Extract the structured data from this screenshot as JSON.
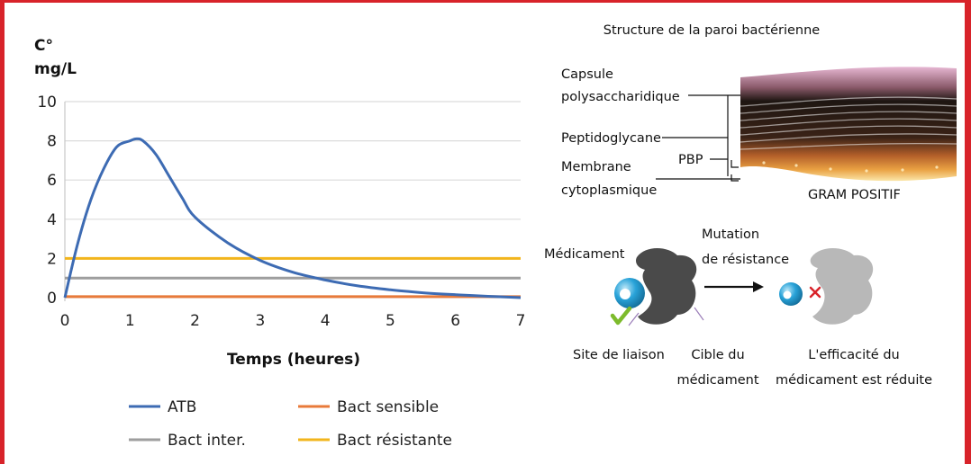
{
  "chart_data": {
    "type": "line",
    "title": "",
    "ylabel_line1": "C°",
    "ylabel_line2": "mg/L",
    "xlabel": "Temps (heures)",
    "xlim": [
      0,
      7
    ],
    "ylim": [
      0,
      10
    ],
    "xticks": [
      "0",
      "1",
      "2",
      "3",
      "4",
      "5",
      "6",
      "7"
    ],
    "yticks": [
      "0",
      "2",
      "4",
      "6",
      "8",
      "10"
    ],
    "grid": true,
    "legend_placement": "bottom",
    "series": [
      {
        "name": "ATB",
        "color": "#3d6bb3",
        "x": [
          0,
          0.2,
          0.4,
          0.6,
          0.8,
          1.0,
          1.1,
          1.2,
          1.4,
          1.6,
          1.8,
          2.0,
          2.5,
          3.0,
          3.5,
          4.0,
          4.5,
          5.0,
          5.5,
          6.0,
          6.5,
          7.0
        ],
        "y": [
          0,
          2.8,
          5.0,
          6.6,
          7.7,
          8.0,
          8.1,
          8.0,
          7.3,
          6.2,
          5.1,
          4.1,
          2.8,
          1.9,
          1.3,
          0.9,
          0.6,
          0.4,
          0.25,
          0.15,
          0.07,
          0.0
        ]
      },
      {
        "name": "Bact sensible",
        "color": "#e87a3a",
        "x": [
          0,
          7
        ],
        "y": [
          0.05,
          0.05
        ]
      },
      {
        "name": "Bact inter.",
        "color": "#9e9e9e",
        "x": [
          0,
          7
        ],
        "y": [
          1,
          1
        ]
      },
      {
        "name": "Bact résistante",
        "color": "#f2b51c",
        "x": [
          0,
          7
        ],
        "y": [
          2,
          2
        ]
      }
    ]
  },
  "legend": {
    "atb": "ATB",
    "sensible": "Bact sensible",
    "inter": "Bact inter.",
    "resistante": "Bact résistante"
  },
  "wall": {
    "title": "Structure de la paroi bactérienne",
    "capsule_1": "Capsule",
    "capsule_2": "polysaccharidique",
    "peptidoglycane": "Peptidoglycane",
    "pbp": "PBP",
    "membrane_1": "Membrane",
    "membrane_2": "cytoplasmique",
    "gram": "GRAM POSITIF"
  },
  "resistance": {
    "medicament": "Médicament",
    "mutation_1": "Mutation",
    "mutation_2": "de résistance",
    "site": "Site de liaison",
    "cible_1": "Cible du",
    "cible_2": "médicament",
    "efficacite_1": "L'efficacité du",
    "efficacite_2": "médicament est réduite"
  },
  "colors": {
    "frame": "#d8232a",
    "check": "#7dbb2c",
    "cross": "#d8232a",
    "target_dark": "#4a4a4a",
    "target_light": "#b8b8b8",
    "drug": "#29a3d9"
  }
}
